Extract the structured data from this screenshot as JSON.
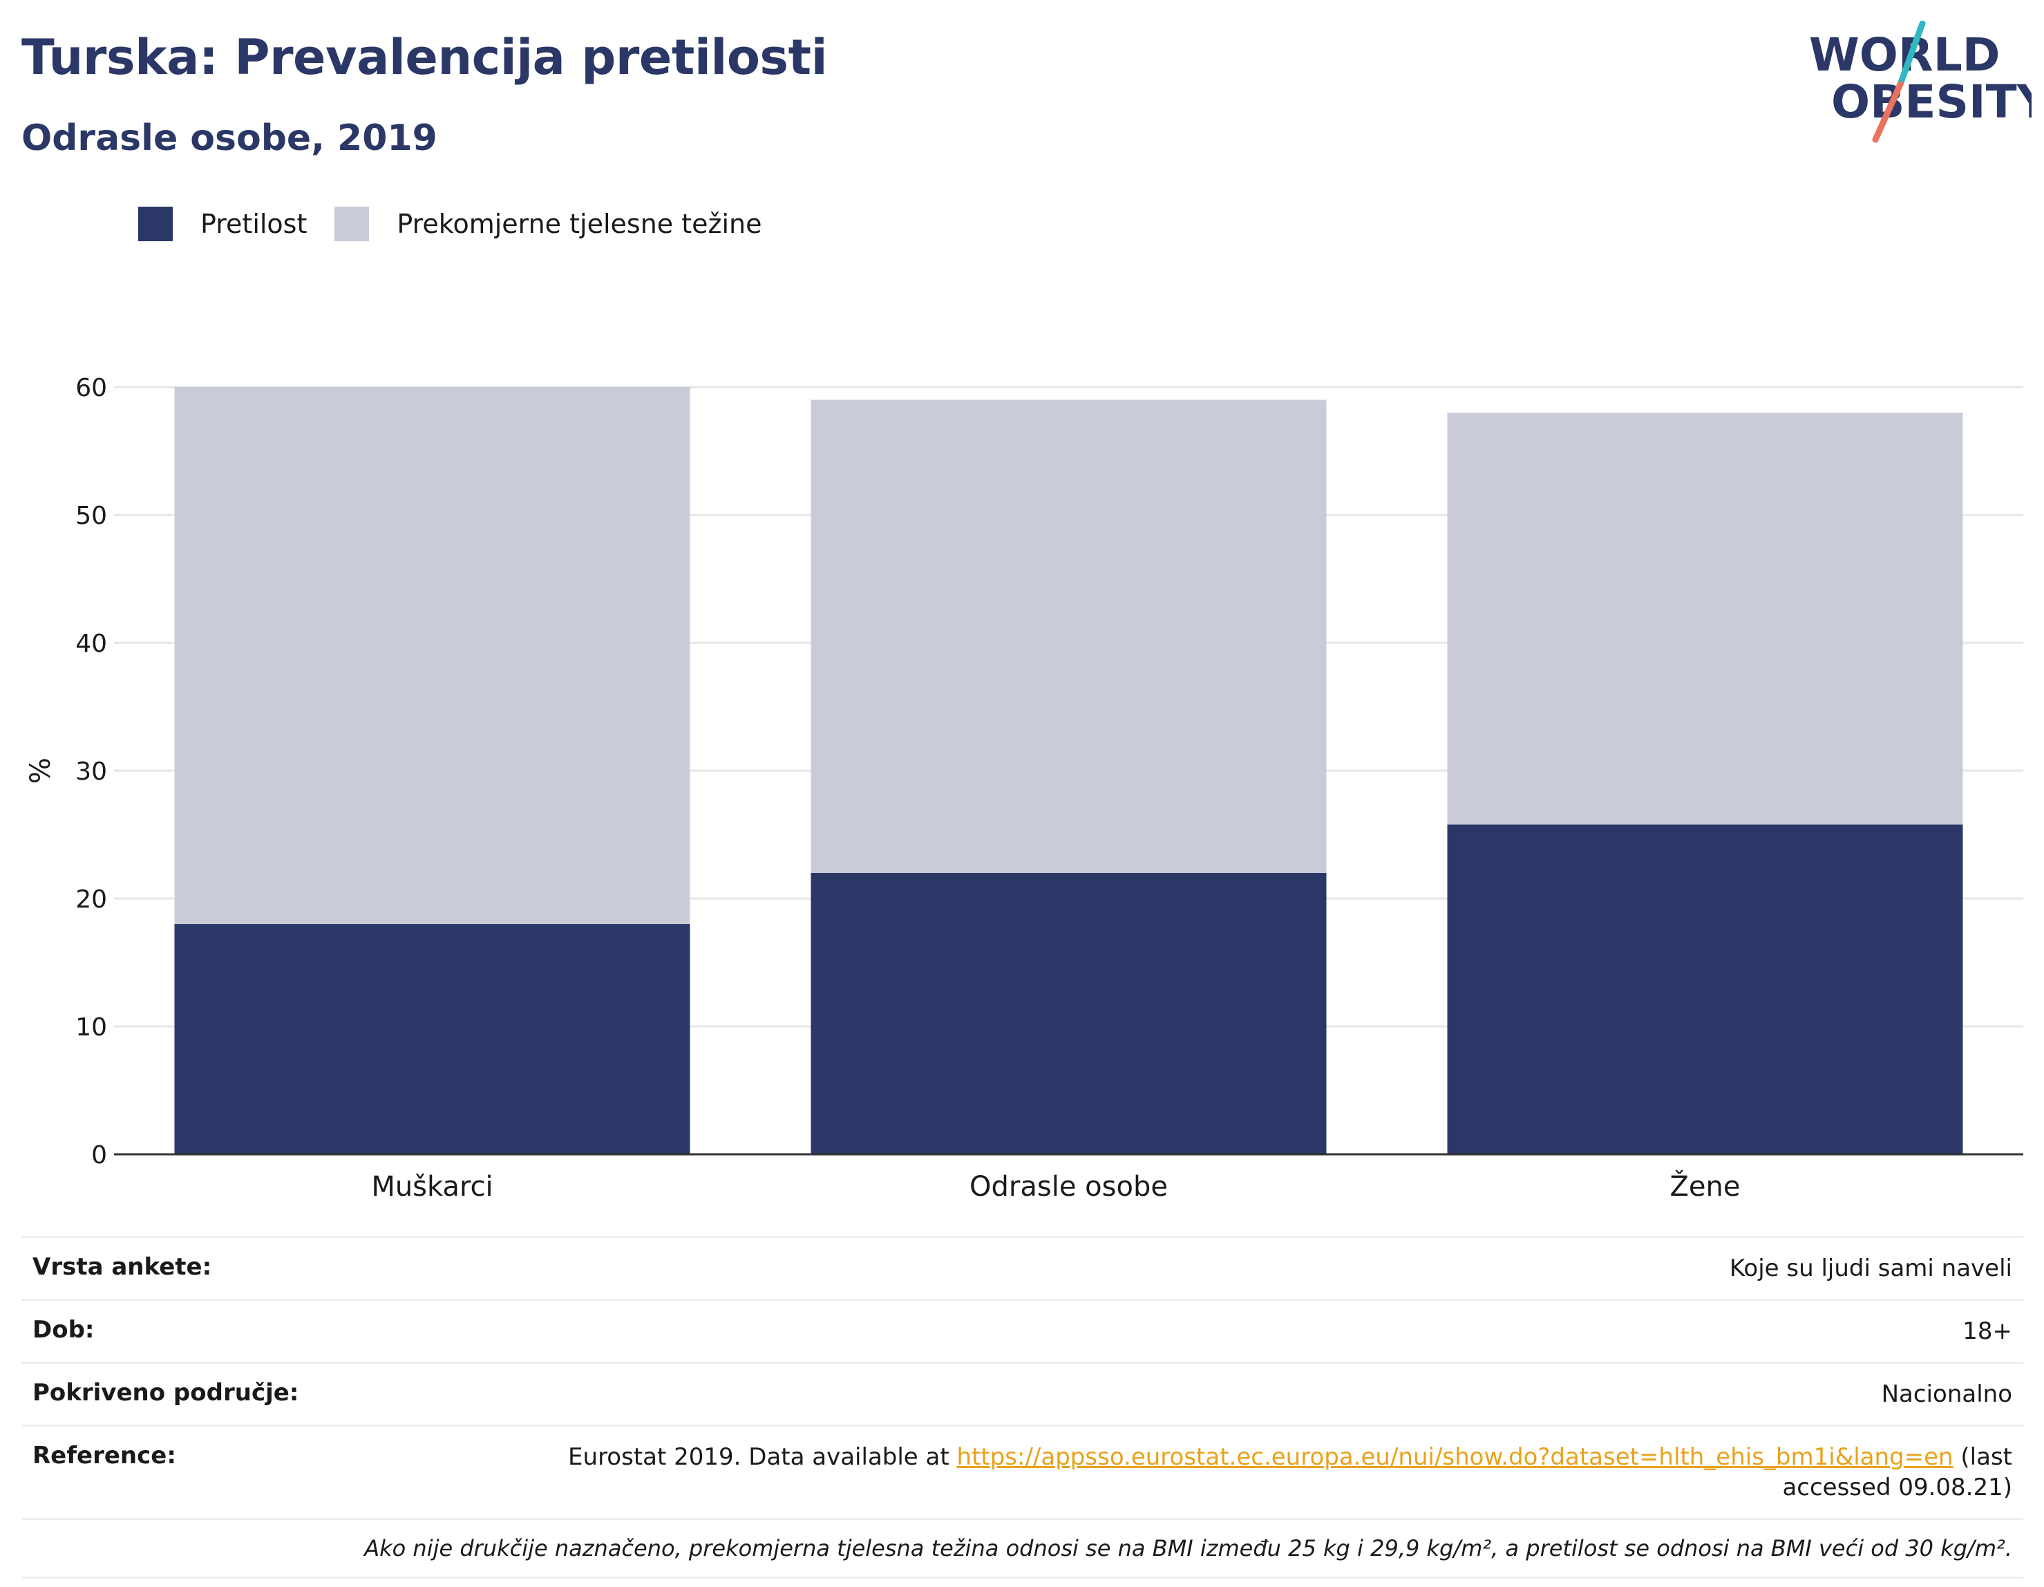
{
  "header": {
    "title": "Turska: Prevalencija pretilosti",
    "subtitle": "Odrasle osobe, 2019"
  },
  "logo": {
    "line1": "WORLD",
    "line2": "OBESITY"
  },
  "colors": {
    "obesity": "#2b3766",
    "overweight": "#c9ccd8",
    "axis": "#333333",
    "grid": "#e6e6e6",
    "link": "#e8a21a",
    "logo_teal": "#2eb8c0",
    "logo_coral": "#e8735f"
  },
  "chart_data": {
    "type": "bar",
    "stacked": true,
    "categories": [
      "Muškarci",
      "Odrasle osobe",
      "Žene"
    ],
    "series": [
      {
        "name": "Pretilost",
        "values": [
          18,
          22,
          25.8
        ]
      },
      {
        "name": "Prekomjerne tjelesne težine",
        "values": [
          42,
          37,
          32.2
        ]
      }
    ],
    "title": "",
    "xlabel": "",
    "ylabel": "%",
    "ylim": [
      0,
      60
    ],
    "yticks": [
      0,
      10,
      20,
      30,
      40,
      50,
      60
    ],
    "grid": true,
    "legend_position": "top-left"
  },
  "info": {
    "rows": [
      {
        "key": "Vrsta ankete:",
        "value": "Koje su ljudi sami naveli"
      },
      {
        "key": "Dob:",
        "value": "18+"
      },
      {
        "key": "Pokriveno područje:",
        "value": "Nacionalno"
      }
    ],
    "reference": {
      "key": "Reference:",
      "prefix": "Eurostat 2019. Data available at ",
      "link": "https://appsso.eurostat.ec.europa.eu/nui/show.do?dataset=hlth_ehis_bm1i&lang=en",
      "suffix": " (last accessed 09.08.21)"
    },
    "note": "Ako nije drukčije naznačeno, prekomjerna tjelesna težina odnosi se na BMI između 25 kg i 29,9 kg/m², a pretilost se odnosi na BMI veći od 30 kg/m²."
  }
}
